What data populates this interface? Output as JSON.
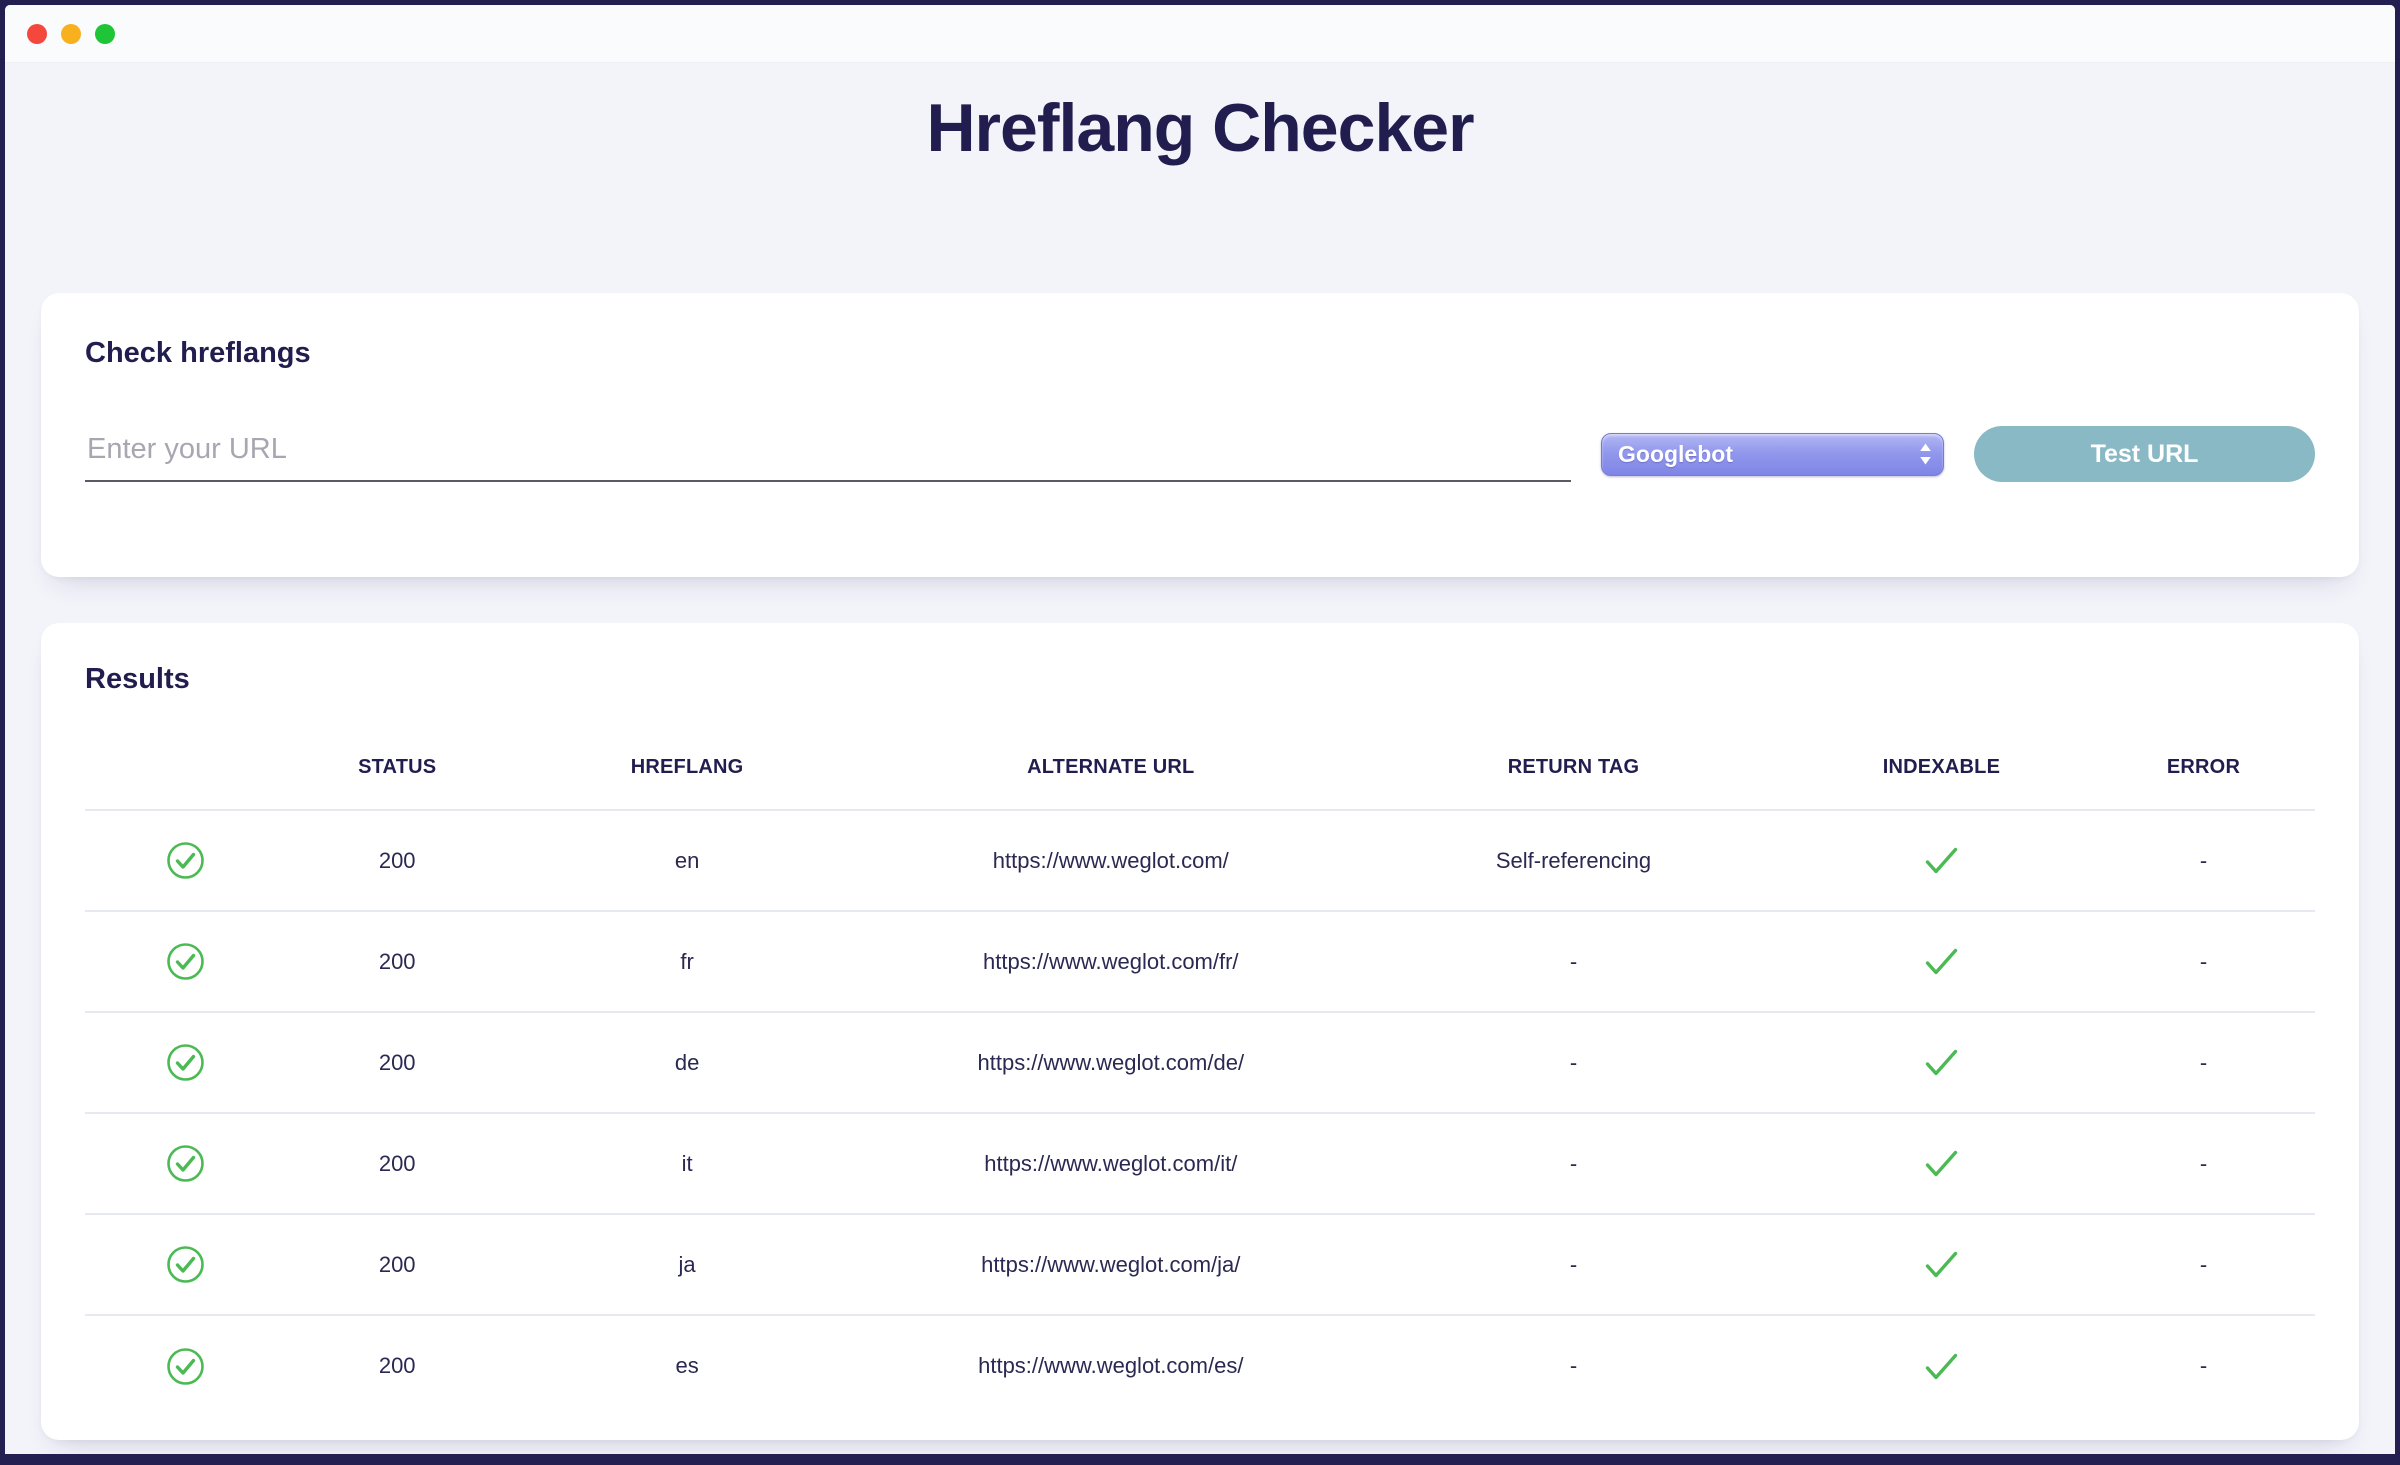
{
  "window": {
    "traffic_lights": {
      "close": "close",
      "minimize": "minimize",
      "zoom": "zoom"
    }
  },
  "title": "Hreflang Checker",
  "check_card": {
    "heading": "Check hreflangs",
    "url_input": {
      "value": "",
      "placeholder": "Enter your URL"
    },
    "user_agent_select": {
      "value": "Googlebot"
    },
    "test_button_label": "Test URL"
  },
  "results_card": {
    "heading": "Results",
    "table": {
      "columns": [
        "",
        "STATUS",
        "HREFLANG",
        "ALTERNATE URL",
        "RETURN TAG",
        "INDEXABLE",
        "ERROR"
      ],
      "rows": [
        {
          "status_icon": "check-circle",
          "status": "200",
          "hreflang": "en",
          "alternate_url": "https://www.weglot.com/",
          "return_tag": "Self-referencing",
          "indexable": true,
          "error": "-"
        },
        {
          "status_icon": "check-circle",
          "status": "200",
          "hreflang": "fr",
          "alternate_url": "https://www.weglot.com/fr/",
          "return_tag": "-",
          "indexable": true,
          "error": "-"
        },
        {
          "status_icon": "check-circle",
          "status": "200",
          "hreflang": "de",
          "alternate_url": "https://www.weglot.com/de/",
          "return_tag": "-",
          "indexable": true,
          "error": "-"
        },
        {
          "status_icon": "check-circle",
          "status": "200",
          "hreflang": "it",
          "alternate_url": "https://www.weglot.com/it/",
          "return_tag": "-",
          "indexable": true,
          "error": "-"
        },
        {
          "status_icon": "check-circle",
          "status": "200",
          "hreflang": "ja",
          "alternate_url": "https://www.weglot.com/ja/",
          "return_tag": "-",
          "indexable": true,
          "error": "-"
        },
        {
          "status_icon": "check-circle",
          "status": "200",
          "hreflang": "es",
          "alternate_url": "https://www.weglot.com/es/",
          "return_tag": "-",
          "indexable": true,
          "error": "-"
        }
      ]
    }
  },
  "colors": {
    "window_border": "#232051",
    "page_background": "#f3f4fa",
    "heading_text": "#211d4f",
    "success_green": "#4cba54",
    "button_teal": "#8ab9c6",
    "select_purple": "#8a90ea",
    "divider": "#e7e9f0",
    "traffic_red": "#f4483d",
    "traffic_yellow": "#f9b01f",
    "traffic_green": "#1ec537"
  }
}
